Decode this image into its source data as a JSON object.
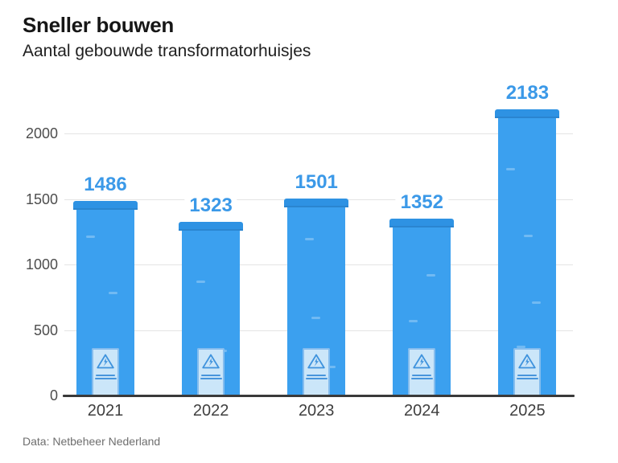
{
  "header": {
    "title": "Sneller bouwen",
    "subtitle": "Aantal gebouwde transformatorhuisjes"
  },
  "source": {
    "label": "Data: Netbeheer Nederland"
  },
  "colors": {
    "bar_body": "#3ba0ef",
    "bar_cap": "#2e92e3",
    "door_fill": "#cbe6f9",
    "door_border": "#85bdee",
    "door_glyph": "#3f93dd",
    "value_label": "#3b99e8",
    "gridline": "#e4e4e4",
    "axis_line": "#3a3a3a",
    "tick_label": "#4d4d4d",
    "title_text": "#161616",
    "source_text": "#6e6e6e"
  },
  "chart_data": {
    "type": "bar",
    "title": "Sneller bouwen",
    "subtitle": "Aantal gebouwde transformatorhuisjes",
    "categories": [
      "2021",
      "2022",
      "2023",
      "2024",
      "2025"
    ],
    "values": [
      1486,
      1323,
      1501,
      1352,
      2183
    ],
    "value_labels": [
      "1486",
      "1323",
      "1501",
      "1352",
      "2183"
    ],
    "xlabel": "",
    "ylabel": "",
    "y_ticks": [
      0,
      500,
      1000,
      1500,
      2000
    ],
    "ylim": [
      0,
      2300
    ],
    "grid": true,
    "legend": false,
    "bar_style": "transformer-house: roof cap on top, light-blue door with warning triangle at base",
    "source": "Data: Netbeheer Nederland"
  }
}
